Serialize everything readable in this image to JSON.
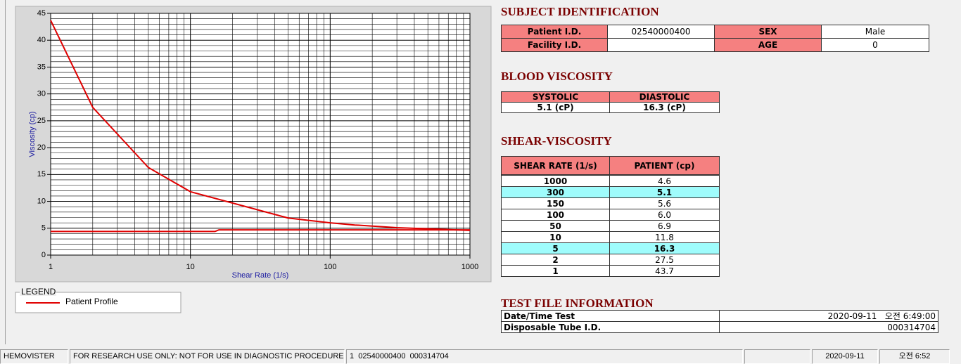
{
  "chart_data": {
    "type": "line",
    "xlabel": "Shear Rate (1/s)",
    "ylabel": "Viscosity (cp)",
    "log_x": true,
    "xlim": [
      1,
      1000
    ],
    "xticks": [
      1,
      10,
      100,
      1000
    ],
    "xminorticks": [
      2,
      3,
      4,
      5,
      6,
      7,
      8,
      9,
      20,
      30,
      40,
      50,
      60,
      70,
      80,
      90,
      200,
      300,
      400,
      500,
      600,
      700,
      800,
      900
    ],
    "ylim": [
      0,
      45
    ],
    "yticks": [
      0,
      5,
      10,
      15,
      20,
      25,
      30,
      35,
      40,
      45
    ],
    "yminorticks": [
      1,
      2,
      3,
      4,
      6,
      7,
      8,
      9,
      11,
      12,
      13,
      14,
      16,
      17,
      18,
      19,
      21,
      22,
      23,
      24,
      26,
      27,
      28,
      29,
      31,
      32,
      33,
      34,
      36,
      37,
      38,
      39,
      41,
      42,
      43,
      44
    ],
    "grid": true,
    "legend_title": "LEGEND",
    "series": [
      {
        "name": "Patient Profile",
        "color": "#e00000",
        "x": [
          1,
          2,
          5,
          10,
          50,
          100,
          150,
          300,
          1000
        ],
        "values": [
          43.7,
          27.5,
          16.3,
          11.8,
          6.9,
          6.0,
          5.6,
          5.1,
          4.6
        ]
      },
      {
        "color": "#e00000",
        "x": [
          1,
          15,
          16,
          1000
        ],
        "values": [
          4.4,
          4.4,
          4.7,
          4.7
        ]
      }
    ]
  },
  "subject": {
    "title": "SUBJECT IDENTIFICATION",
    "fields": [
      {
        "label": "Patient I.D.",
        "value": "02540000400"
      },
      {
        "label": "SEX",
        "value": "Male"
      },
      {
        "label": "Facility I.D."
      },
      {
        "label": "AGE",
        "value": "0"
      }
    ]
  },
  "blood": {
    "title": "BLOOD VISCOSITY",
    "headers": [
      "SYSTOLIC",
      "DIASTOLIC"
    ],
    "values": [
      "5.1 (cP)",
      "16.3 (cP)"
    ]
  },
  "shear": {
    "title": "SHEAR-VISCOSITY",
    "headers": [
      "SHEAR RATE (1/s)",
      "PATIENT (cp)"
    ],
    "rows": [
      [
        "1000",
        "4.6"
      ],
      [
        "300",
        "5.1"
      ],
      [
        "150",
        "5.6"
      ],
      [
        "100",
        "6.0"
      ],
      [
        "50",
        "6.9"
      ],
      [
        "10",
        "11.8"
      ],
      [
        "5",
        "16.3"
      ],
      [
        "2",
        "27.5"
      ],
      [
        "1",
        "43.7"
      ]
    ],
    "highlighted_rows": [
      1,
      6
    ]
  },
  "test_file": {
    "title": "TEST FILE INFORMATION",
    "rows": [
      [
        "Date/Time Test",
        "2020-09-11   오전 6:49:00"
      ],
      [
        "Disposable Tube I.D.",
        "000314704"
      ]
    ]
  },
  "status_bar": [
    "HEMOVISTER",
    "FOR RESEARCH USE ONLY: NOT FOR USE IN DIAGNOSTIC PROCEDURES",
    "1  02540000400  000314704",
    "2020-09-11",
    "오전 6:52"
  ]
}
